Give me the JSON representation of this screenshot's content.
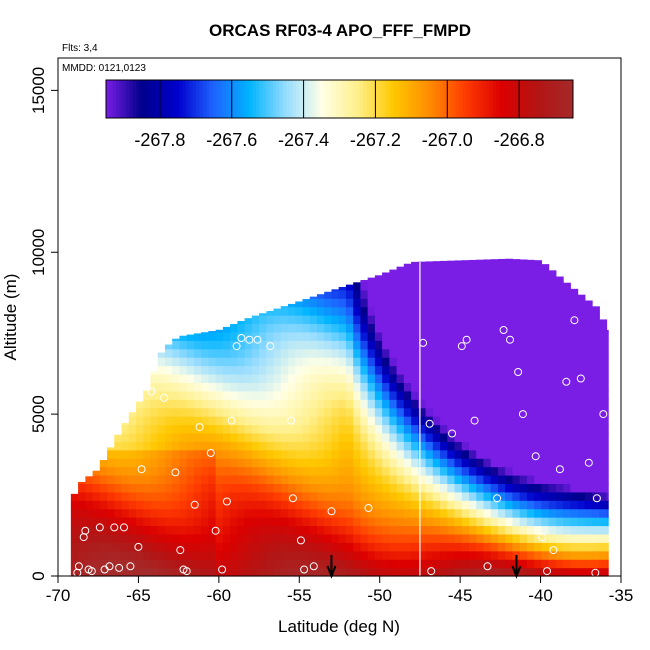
{
  "chart_data": {
    "type": "heatmap",
    "title": "ORCAS RF03-4 APO_FFF_FMPD",
    "xlabel": "Latitude (deg N)",
    "ylabel": "Altitude (m)",
    "xlim": [
      -70,
      -35
    ],
    "ylim": [
      0,
      16000
    ],
    "x_ticks": [
      {
        "value": -70,
        "label": "-70"
      },
      {
        "value": -65,
        "label": "-65"
      },
      {
        "value": -60,
        "label": "-60"
      },
      {
        "value": -55,
        "label": "-55"
      },
      {
        "value": -50,
        "label": "-50"
      },
      {
        "value": -45,
        "label": "-45"
      },
      {
        "value": -40,
        "label": "-40"
      },
      {
        "value": -35,
        "label": "-35"
      }
    ],
    "y_ticks": [
      {
        "value": 0,
        "label": "0"
      },
      {
        "value": 5000,
        "label": "5000"
      },
      {
        "value": 10000,
        "label": "10000"
      },
      {
        "value": 15000,
        "label": "15000"
      }
    ],
    "annotations": {
      "flights": "Flts: 3,4",
      "dates": "MMDD: 0121,0123"
    },
    "colorbar": {
      "min": -267.95,
      "max": -266.65,
      "tick_values": [
        -267.8,
        -267.6,
        -267.4,
        -267.2,
        -267.0,
        -266.8
      ],
      "tick_labels": [
        "-267.8",
        "-267.6",
        "-267.4",
        "-267.2",
        "-267.0",
        "-266.8"
      ],
      "colors": [
        "#7a1ee6",
        "#00008b",
        "#0000cd",
        "#1e64ff",
        "#00b4ff",
        "#96dcff",
        "#ffffe6",
        "#fff08c",
        "#ffc800",
        "#ff8c00",
        "#ff3c00",
        "#dc0000",
        "#b41414",
        "#a52a2a"
      ]
    },
    "domain": {
      "top_altitude": [
        [
          -69.2,
          2200
        ],
        [
          -68.8,
          2800
        ],
        [
          -67.5,
          3300
        ],
        [
          -66,
          4600
        ],
        [
          -64.5,
          5700
        ],
        [
          -63.5,
          7000
        ],
        [
          -62.5,
          7400
        ],
        [
          -60,
          7600
        ],
        [
          -58,
          8000
        ],
        [
          -55.5,
          8400
        ],
        [
          -52.5,
          8900
        ],
        [
          -50,
          9300
        ],
        [
          -48,
          9700
        ],
        [
          -45,
          9750
        ],
        [
          -42,
          9800
        ],
        [
          -40,
          9750
        ],
        [
          -38,
          8900
        ],
        [
          -36.5,
          8300
        ],
        [
          -35.8,
          7600
        ]
      ],
      "bottom_altitude": 0
    },
    "vertical_marker_lat": -47.5,
    "arrows_lat": [
      -53,
      -41.5
    ],
    "samples": [
      [
        -68.8,
        100
      ],
      [
        -68.7,
        300
      ],
      [
        -68.4,
        1200
      ],
      [
        -68.3,
        1400
      ],
      [
        -68.1,
        200
      ],
      [
        -67.9,
        150
      ],
      [
        -67.4,
        1500
      ],
      [
        -67.1,
        200
      ],
      [
        -66.8,
        300
      ],
      [
        -66.5,
        1500
      ],
      [
        -66.2,
        250
      ],
      [
        -65.9,
        1500
      ],
      [
        -65.5,
        300
      ],
      [
        -65,
        900
      ],
      [
        -64.8,
        3300
      ],
      [
        -64.2,
        5700
      ],
      [
        -63.4,
        5500
      ],
      [
        -62.7,
        3200
      ],
      [
        -62.4,
        800
      ],
      [
        -62.2,
        200
      ],
      [
        -62,
        150
      ],
      [
        -61.5,
        2200
      ],
      [
        -61.2,
        4600
      ],
      [
        -60.5,
        3800
      ],
      [
        -60.2,
        1400
      ],
      [
        -59.8,
        200
      ],
      [
        -59.5,
        2300
      ],
      [
        -59.2,
        4800
      ],
      [
        -58.9,
        7100
      ],
      [
        -58.6,
        7350
      ],
      [
        -58.1,
        7300
      ],
      [
        -57.6,
        7300
      ],
      [
        -57,
        8300
      ],
      [
        -56.8,
        7100
      ],
      [
        -55.5,
        4800
      ],
      [
        -55.4,
        2400
      ],
      [
        -54.9,
        1100
      ],
      [
        -54.7,
        200
      ],
      [
        -54.1,
        300
      ],
      [
        -53,
        2000
      ],
      [
        -50.7,
        2100
      ],
      [
        -47.3,
        7200
      ],
      [
        -46.9,
        4700
      ],
      [
        -46.8,
        150
      ],
      [
        -45.5,
        4400
      ],
      [
        -44.9,
        7100
      ],
      [
        -44.6,
        7300
      ],
      [
        -44.1,
        4800
      ],
      [
        -43.3,
        300
      ],
      [
        -42.7,
        2400
      ],
      [
        -42.3,
        7600
      ],
      [
        -41.9,
        7300
      ],
      [
        -41.4,
        6300
      ],
      [
        -41.1,
        5000
      ],
      [
        -40.3,
        3700
      ],
      [
        -39.9,
        1200
      ],
      [
        -39.6,
        150
      ],
      [
        -39.2,
        800
      ],
      [
        -38.8,
        3300
      ],
      [
        -38.4,
        6000
      ],
      [
        -37.9,
        7900
      ],
      [
        -37.5,
        6100
      ],
      [
        -37,
        3500
      ],
      [
        -36.5,
        2400
      ],
      [
        -36.1,
        5000
      ],
      [
        -35.3,
        7600
      ],
      [
        -36.6,
        100
      ]
    ]
  }
}
